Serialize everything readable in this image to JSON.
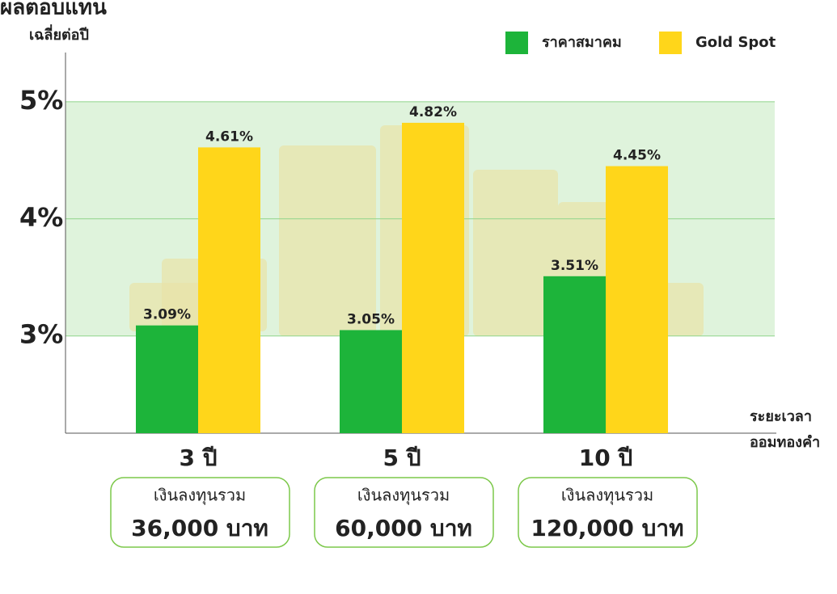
{
  "chart_data": {
    "type": "bar",
    "y_axis_label": [
      "ผลตอบแทน",
      "เฉลี่ยต่อปี"
    ],
    "x_axis_label": [
      "ระยะเวลา",
      "ออมทองคำ"
    ],
    "categories": [
      "3 ปี",
      "5 ปี",
      "10 ปี"
    ],
    "category_notes": [
      [
        "เงินลงทุนรวม",
        "36,000 บาท"
      ],
      [
        "เงินลงทุนรวม",
        "60,000 บาท"
      ],
      [
        "เงินลงทุนรวม",
        "120,000 บาท"
      ]
    ],
    "series": [
      {
        "name": "ราคาสมาคม",
        "color": "#1db43a",
        "values": [
          3.09,
          3.05,
          3.51
        ],
        "value_labels": [
          "3.09%",
          "3.05%",
          "3.51%"
        ]
      },
      {
        "name": "Gold Spot",
        "color": "#ffd61a",
        "values": [
          4.61,
          4.82,
          4.45
        ],
        "value_labels": [
          "4.61%",
          "4.82%",
          "4.45%"
        ]
      }
    ],
    "ylim": [
      2.17,
      5.42
    ],
    "yticks": [
      {
        "value": 3,
        "label": "3%"
      },
      {
        "value": 4,
        "label": "4%"
      },
      {
        "value": 5,
        "label": "5%"
      }
    ],
    "grid": true,
    "legend": "top-right"
  }
}
